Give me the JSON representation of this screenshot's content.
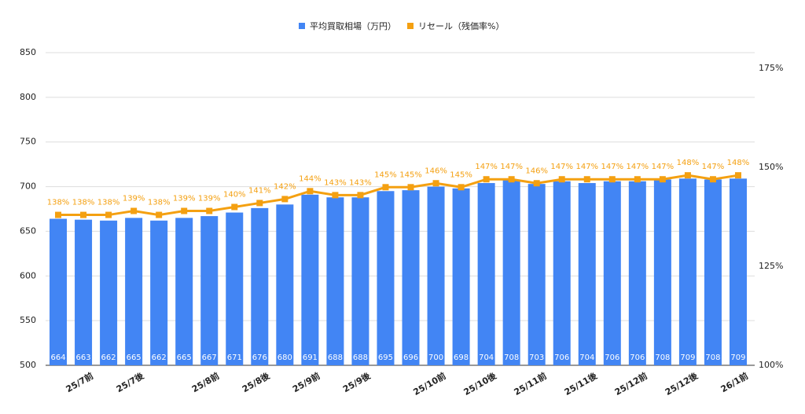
{
  "chart_data": {
    "type": "combo",
    "categories": [
      null,
      "25/7前",
      null,
      "25/7後",
      null,
      null,
      "25/8前",
      null,
      "25/8後",
      null,
      "25/9前",
      null,
      "25/9後",
      null,
      null,
      "25/10前",
      null,
      "25/10後",
      null,
      "25/11前",
      null,
      "25/11後",
      null,
      "25/12前",
      null,
      "25/12後",
      null,
      "26/1前"
    ],
    "series": [
      {
        "name": "平均買取相場（万円）",
        "type": "bar",
        "color": "#4285f4",
        "values": [
          664,
          663,
          662,
          665,
          662,
          665,
          667,
          671,
          676,
          680,
          691,
          688,
          688,
          695,
          696,
          700,
          698,
          704,
          708,
          703,
          706,
          704,
          706,
          706,
          708,
          709,
          708,
          709
        ]
      },
      {
        "name": "リセール（残価率%）",
        "type": "line",
        "axis": "y2",
        "color": "#f4a011",
        "values": [
          138,
          138,
          138,
          139,
          138,
          139,
          139,
          140,
          141,
          142,
          144,
          143,
          143,
          145,
          145,
          146,
          145,
          147,
          147,
          146,
          147,
          147,
          147,
          147,
          147,
          148,
          147,
          148
        ],
        "value_labels": [
          "138%",
          "138%",
          "138%",
          "139%",
          "138%",
          "139%",
          "139%",
          "140%",
          "141%",
          "142%",
          "144%",
          "143%",
          "143%",
          "145%",
          "145%",
          "146%",
          "145%",
          "147%",
          "147%",
          "146%",
          "147%",
          "147%",
          "147%",
          "147%",
          "147%",
          "148%",
          "147%",
          "148%"
        ]
      }
    ],
    "ylim": [
      500,
      850
    ],
    "yticks": [
      500,
      550,
      600,
      650,
      700,
      750,
      800,
      850
    ],
    "y2lim": [
      100,
      179
    ],
    "y2ticks": [
      {
        "value": 100,
        "label": "100%"
      },
      {
        "value": 125,
        "label": "125%"
      },
      {
        "value": 150,
        "label": "150%"
      },
      {
        "value": 175,
        "label": "175%"
      }
    ],
    "grid": true,
    "legend": "top"
  }
}
